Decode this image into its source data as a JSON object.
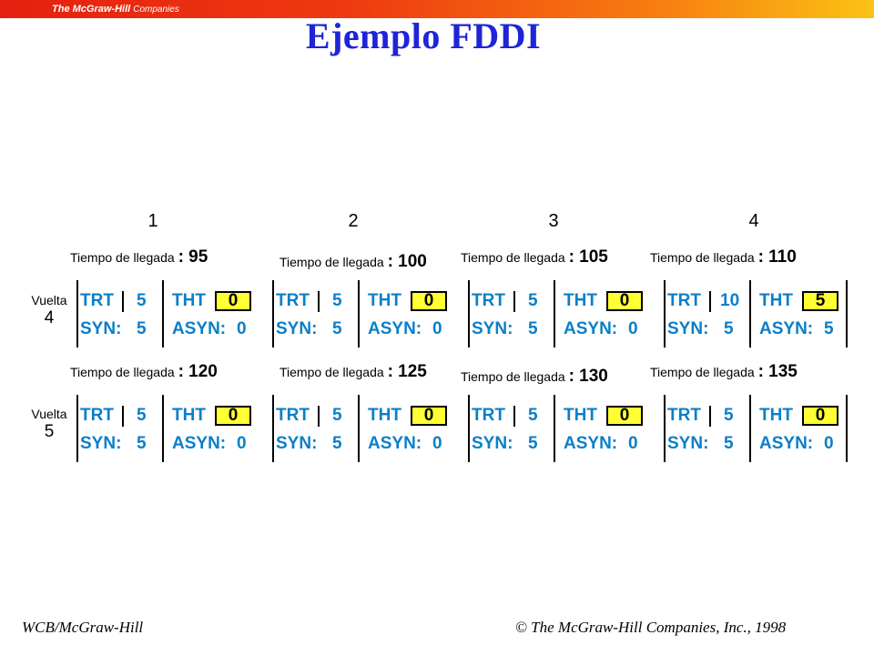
{
  "header": {
    "logo_text": "The McGraw-Hill",
    "logo_suffix": "Companies",
    "title": "Ejemplo FDDI"
  },
  "columns": [
    "1",
    "2",
    "3",
    "4"
  ],
  "rows": [
    {
      "vuelta_label": "Vuelta",
      "vuelta_number": "4",
      "stations": [
        {
          "arrival_label": "Tiempo de llegada",
          "arrival_value": ": 95",
          "trt": "5",
          "tht": "0",
          "syn": "5",
          "asyn": "0"
        },
        {
          "arrival_label": "Tiempo de llegada",
          "arrival_value": ": 100",
          "trt": "5",
          "tht": "0",
          "syn": "5",
          "asyn": "0"
        },
        {
          "arrival_label": "Tiempo de llegada",
          "arrival_value": ": 105",
          "trt": "5",
          "tht": "0",
          "syn": "5",
          "asyn": "0"
        },
        {
          "arrival_label": "Tiempo de llegada",
          "arrival_value": ": 110",
          "trt": "10",
          "tht": "5",
          "syn": "5",
          "asyn": "5"
        }
      ]
    },
    {
      "vuelta_label": "Vuelta",
      "vuelta_number": "5",
      "stations": [
        {
          "arrival_label": "Tiempo de llegada",
          "arrival_value": ": 120",
          "trt": "5",
          "tht": "0",
          "syn": "5",
          "asyn": "0"
        },
        {
          "arrival_label": "Tiempo de llegada",
          "arrival_value": ": 125",
          "trt": "5",
          "tht": "0",
          "syn": "5",
          "asyn": "0"
        },
        {
          "arrival_label": "Tiempo de llegada",
          "arrival_value": ": 130",
          "trt": "5",
          "tht": "0",
          "syn": "5",
          "asyn": "0"
        },
        {
          "arrival_label": "Tiempo de llegada",
          "arrival_value": ": 135",
          "trt": "5",
          "tht": "0",
          "syn": "5",
          "asyn": "0"
        }
      ]
    }
  ],
  "labels": {
    "trt": "TRT",
    "tht": "THT",
    "syn": "SYN:",
    "asyn": "ASYN:"
  },
  "footer": {
    "left": "WCB/McGraw-Hill",
    "right": "© The McGraw-Hill Companies, Inc., 1998"
  },
  "colors": {
    "title": "#1f25d6",
    "field_text": "#0a7fc8",
    "highlight_box": "#ffff33",
    "banner_start": "#e5200f",
    "banner_end": "#fbc214"
  }
}
